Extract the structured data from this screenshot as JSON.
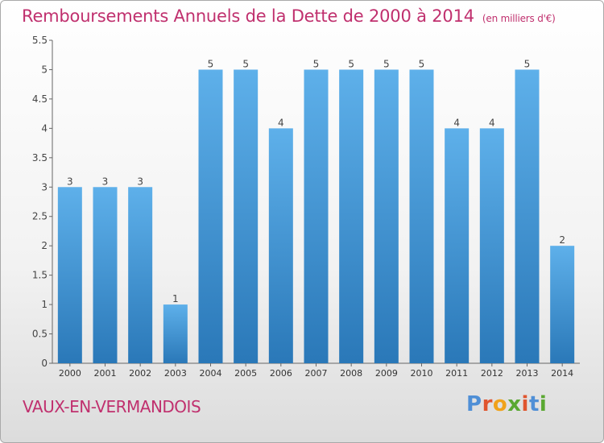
{
  "header": {
    "title": "Remboursements Annuels de la Dette de 2000 à 2014",
    "subtitle": "(en milliers d'€)"
  },
  "footer": {
    "commune": "VAUX-EN-VERMANDOIS",
    "brand": "Proxiti"
  },
  "colors": {
    "title": "#c0306e",
    "bar_light": "#5eb0ea",
    "bar_dark": "#2a78b8",
    "brand_letters": [
      "#4f8fd6",
      "#e0552f",
      "#f0a21a",
      "#5aa832",
      "#e0552f",
      "#4f8fd6",
      "#5aa832"
    ]
  },
  "chart_data": {
    "type": "bar",
    "categories": [
      "2000",
      "2001",
      "2002",
      "2003",
      "2004",
      "2005",
      "2006",
      "2007",
      "2008",
      "2009",
      "2010",
      "2011",
      "2012",
      "2013",
      "2014"
    ],
    "values": [
      3,
      3,
      3,
      1,
      5,
      5,
      4,
      5,
      5,
      5,
      5,
      4,
      4,
      5,
      2
    ],
    "ylim": [
      0,
      5.5
    ],
    "yticks": [
      "0",
      "0.5",
      "1",
      "1.5",
      "2",
      "2.5",
      "3",
      "3.5",
      "4",
      "4.5",
      "5",
      "5.5"
    ],
    "grid": false,
    "legend": "none"
  }
}
